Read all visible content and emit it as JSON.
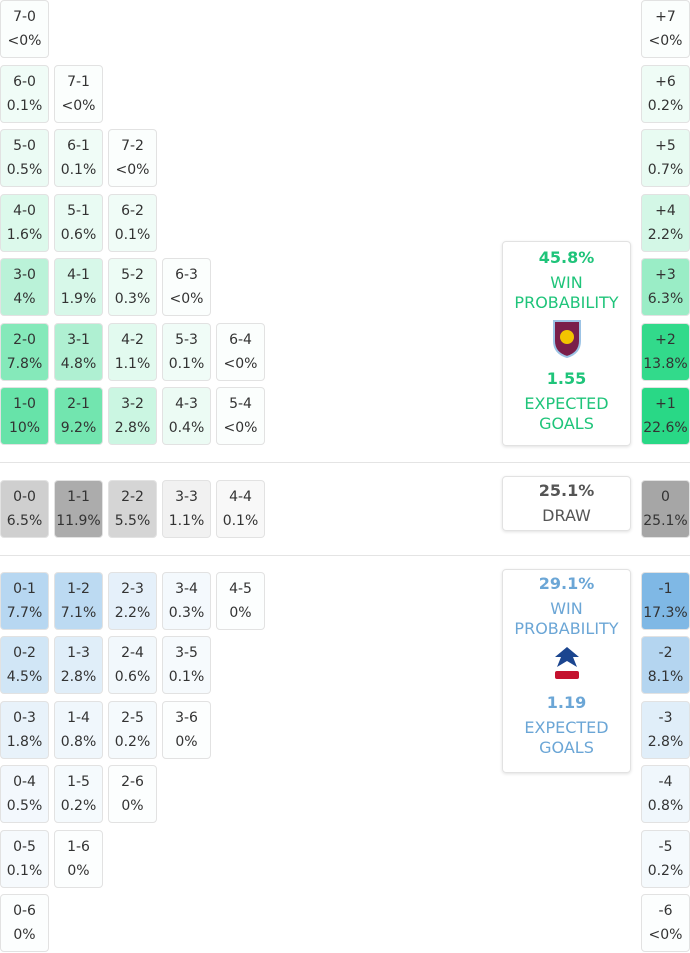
{
  "home": {
    "rows": [
      [
        {
          "score": "7-0",
          "prob": "<0%"
        }
      ],
      [
        {
          "score": "6-0",
          "prob": "0.1%"
        },
        {
          "score": "7-1",
          "prob": "<0%"
        }
      ],
      [
        {
          "score": "5-0",
          "prob": "0.5%"
        },
        {
          "score": "6-1",
          "prob": "0.1%"
        },
        {
          "score": "7-2",
          "prob": "<0%"
        }
      ],
      [
        {
          "score": "4-0",
          "prob": "1.6%"
        },
        {
          "score": "5-1",
          "prob": "0.6%"
        },
        {
          "score": "6-2",
          "prob": "0.1%"
        }
      ],
      [
        {
          "score": "3-0",
          "prob": "4%"
        },
        {
          "score": "4-1",
          "prob": "1.9%"
        },
        {
          "score": "5-2",
          "prob": "0.3%"
        },
        {
          "score": "6-3",
          "prob": "<0%"
        }
      ],
      [
        {
          "score": "2-0",
          "prob": "7.8%"
        },
        {
          "score": "3-1",
          "prob": "4.8%"
        },
        {
          "score": "4-2",
          "prob": "1.1%"
        },
        {
          "score": "5-3",
          "prob": "0.1%"
        },
        {
          "score": "6-4",
          "prob": "<0%"
        }
      ],
      [
        {
          "score": "1-0",
          "prob": "10%"
        },
        {
          "score": "2-1",
          "prob": "9.2%"
        },
        {
          "score": "3-2",
          "prob": "2.8%"
        },
        {
          "score": "4-3",
          "prob": "0.4%"
        },
        {
          "score": "5-4",
          "prob": "<0%"
        }
      ]
    ],
    "margins": [
      {
        "label": "+7",
        "prob": "<0%"
      },
      {
        "label": "+6",
        "prob": "0.2%"
      },
      {
        "label": "+5",
        "prob": "0.7%"
      },
      {
        "label": "+4",
        "prob": "2.2%"
      },
      {
        "label": "+3",
        "prob": "6.3%"
      },
      {
        "label": "+2",
        "prob": "13.8%"
      },
      {
        "label": "+1",
        "prob": "22.6%"
      }
    ],
    "win_probability": "45.8%",
    "win_label": "WIN PROBABILITY",
    "expected_goals": "1.55",
    "xg_label": "EXPECTED GOALS"
  },
  "draw": {
    "rows": [
      [
        {
          "score": "0-0",
          "prob": "6.5%"
        },
        {
          "score": "1-1",
          "prob": "11.9%"
        },
        {
          "score": "2-2",
          "prob": "5.5%"
        },
        {
          "score": "3-3",
          "prob": "1.1%"
        },
        {
          "score": "4-4",
          "prob": "0.1%"
        }
      ]
    ],
    "margins": [
      {
        "label": "0",
        "prob": "25.1%"
      }
    ],
    "probability": "25.1%",
    "label": "DRAW"
  },
  "away": {
    "rows": [
      [
        {
          "score": "0-1",
          "prob": "7.7%"
        },
        {
          "score": "1-2",
          "prob": "7.1%"
        },
        {
          "score": "2-3",
          "prob": "2.2%"
        },
        {
          "score": "3-4",
          "prob": "0.3%"
        },
        {
          "score": "4-5",
          "prob": "0%"
        }
      ],
      [
        {
          "score": "0-2",
          "prob": "4.5%"
        },
        {
          "score": "1-3",
          "prob": "2.8%"
        },
        {
          "score": "2-4",
          "prob": "0.6%"
        },
        {
          "score": "3-5",
          "prob": "0.1%"
        }
      ],
      [
        {
          "score": "0-3",
          "prob": "1.8%"
        },
        {
          "score": "1-4",
          "prob": "0.8%"
        },
        {
          "score": "2-5",
          "prob": "0.2%"
        },
        {
          "score": "3-6",
          "prob": "0%"
        }
      ],
      [
        {
          "score": "0-4",
          "prob": "0.5%"
        },
        {
          "score": "1-5",
          "prob": "0.2%"
        },
        {
          "score": "2-6",
          "prob": "0%"
        }
      ],
      [
        {
          "score": "0-5",
          "prob": "0.1%"
        },
        {
          "score": "1-6",
          "prob": "0%"
        }
      ],
      [
        {
          "score": "0-6",
          "prob": "0%"
        }
      ]
    ],
    "margins": [
      {
        "label": "-1",
        "prob": "17.3%"
      },
      {
        "label": "-2",
        "prob": "8.1%"
      },
      {
        "label": "-3",
        "prob": "2.8%"
      },
      {
        "label": "-4",
        "prob": "0.8%"
      },
      {
        "label": "-5",
        "prob": "0.2%"
      },
      {
        "label": "-6",
        "prob": "<0%"
      }
    ],
    "win_probability": "29.1%",
    "win_label": "WIN PROBABILITY",
    "expected_goals": "1.19",
    "xg_label": "EXPECTED GOALS"
  }
}
